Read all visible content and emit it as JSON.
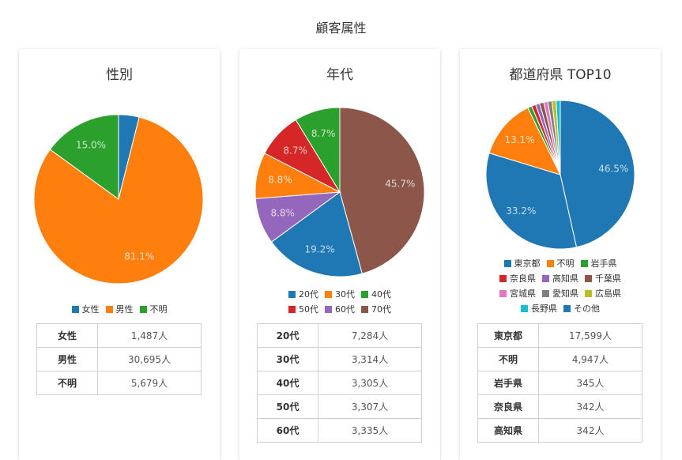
{
  "page_title": "顧客属性",
  "charts": [
    {
      "id": "gender",
      "title": "性別",
      "legend_layout": [
        3
      ],
      "rows": [
        {
          "label": "女性",
          "value": "1,487人"
        },
        {
          "label": "男性",
          "value": "30,695人"
        },
        {
          "label": "不明",
          "value": "5,679人"
        }
      ]
    },
    {
      "id": "age",
      "title": "年代",
      "legend_layout": [
        3,
        3
      ],
      "rows": [
        {
          "label": "20代",
          "value": "7,284人"
        },
        {
          "label": "30代",
          "value": "3,314人"
        },
        {
          "label": "40代",
          "value": "3,305人"
        },
        {
          "label": "50代",
          "value": "3,307人"
        },
        {
          "label": "60代",
          "value": "3,335人"
        }
      ]
    },
    {
      "id": "pref",
      "title": "都道府県 TOP10",
      "legend_layout": [
        3,
        3,
        3,
        2
      ],
      "rows": [
        {
          "label": "東京都",
          "value": "17,599人"
        },
        {
          "label": "不明",
          "value": "4,947人"
        },
        {
          "label": "岩手県",
          "value": "345人"
        },
        {
          "label": "奈良県",
          "value": "342人"
        },
        {
          "label": "高知県",
          "value": "342人"
        }
      ]
    }
  ],
  "chart_data": [
    {
      "type": "pie",
      "title": "性別",
      "categories": [
        "女性",
        "男性",
        "不明"
      ],
      "values": [
        1487,
        30695,
        5679
      ],
      "percent_labels": [
        "",
        "81.1%",
        "15.0%"
      ],
      "colors": [
        "#1f77b4",
        "#ff7f0e",
        "#2ca02c"
      ],
      "legend_position": "bottom"
    },
    {
      "type": "pie",
      "title": "年代",
      "categories": [
        "20代",
        "30代",
        "40代",
        "50代",
        "60代",
        "70代"
      ],
      "values": [
        19.2,
        8.8,
        8.7,
        8.7,
        8.8,
        45.7
      ],
      "slice_order": [
        "70代",
        "20代",
        "60代",
        "30代",
        "50代",
        "40代"
      ],
      "percent_labels": {
        "20代": "19.2%",
        "30代": "8.8%",
        "40代": "8.7%",
        "50代": "8.7%",
        "60代": "8.8%",
        "70代": "45.7%"
      },
      "colors": {
        "20代": "#1f77b4",
        "30代": "#ff7f0e",
        "40代": "#2ca02c",
        "50代": "#d62728",
        "60代": "#9467bd",
        "70代": "#8c564b"
      },
      "legend_position": "bottom"
    },
    {
      "type": "pie",
      "title": "都道府県 TOP10",
      "categories": [
        "東京都",
        "不明",
        "岩手県",
        "奈良県",
        "高知県",
        "千葉県",
        "宮城県",
        "愛知県",
        "広島県",
        "長野県",
        "その他"
      ],
      "values": [
        46.5,
        13.1,
        0.9,
        0.9,
        0.9,
        0.9,
        0.9,
        0.9,
        0.9,
        0.9,
        33.2
      ],
      "slice_order": [
        "東京都",
        "その他",
        "不明",
        "岩手県",
        "奈良県",
        "高知県",
        "千葉県",
        "宮城県",
        "愛知県",
        "広島県",
        "長野県"
      ],
      "percent_labels": {
        "東京都": "46.5%",
        "その他": "33.2%",
        "不明": "13.1%"
      },
      "colors": {
        "東京都": "#1f77b4",
        "不明": "#ff7f0e",
        "岩手県": "#2ca02c",
        "奈良県": "#d62728",
        "高知県": "#9467bd",
        "千葉県": "#8c564b",
        "宮城県": "#e377c2",
        "愛知県": "#7f7f7f",
        "広島県": "#bcbd22",
        "長野県": "#17becf",
        "その他": "#1f77b4"
      },
      "legend_position": "bottom"
    }
  ]
}
